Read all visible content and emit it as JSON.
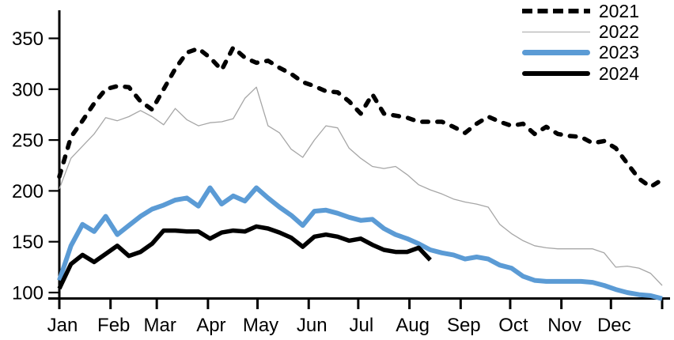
{
  "chart_data": {
    "type": "line",
    "x_axis": {
      "tick_labels": [
        "Jan",
        "Feb",
        "Mar",
        "Apr",
        "May",
        "Jun",
        "Jul",
        "Aug",
        "Sep",
        "Oct",
        "Nov",
        "Dec"
      ],
      "unit": "weekly points across one calendar year",
      "month_start_days": [
        0,
        31,
        59,
        90,
        120,
        151,
        181,
        212,
        243,
        273,
        304,
        334,
        365
      ]
    },
    "y_axis": {
      "min": 100,
      "max": 350,
      "tick_step": 50,
      "ticks": [
        100,
        150,
        200,
        250,
        300,
        350
      ]
    },
    "grid": false,
    "legend": {
      "position": "top-right",
      "entries": [
        "2021",
        "2022",
        "2023",
        "2024"
      ]
    },
    "series": [
      {
        "name": "2021",
        "style": "dashed",
        "color": "#000000",
        "width": 5.5,
        "values": [
          214,
          253,
          269,
          286,
          300,
          303,
          302,
          288,
          280,
          300,
          320,
          336,
          340,
          331,
          319,
          341,
          331,
          326,
          328,
          321,
          315,
          307,
          303,
          298,
          297,
          288,
          276,
          295,
          276,
          274,
          272,
          268,
          268,
          268,
          263,
          257,
          266,
          273,
          268,
          264,
          266,
          256,
          263,
          256,
          254,
          253,
          247,
          249,
          242,
          227,
          212,
          204,
          211
        ]
      },
      {
        "name": "2022",
        "style": "solid",
        "color": "#a6a6a6",
        "width": 1.3,
        "values": [
          202,
          232,
          244,
          256,
          272,
          269,
          273,
          279,
          273,
          265,
          281,
          270,
          264,
          267,
          268,
          271,
          291,
          302,
          264,
          257,
          241,
          233,
          250,
          264,
          262,
          242,
          232,
          224,
          222,
          224,
          216,
          206,
          201,
          197,
          192,
          189,
          187,
          184,
          167,
          158,
          151,
          146,
          144,
          143,
          143,
          143,
          143,
          139,
          125,
          126,
          124,
          119,
          107
        ]
      },
      {
        "name": "2023",
        "style": "solid",
        "color": "#5b9bd5",
        "width": 6,
        "values": [
          112,
          146,
          167,
          160,
          175,
          157,
          166,
          175,
          182,
          186,
          191,
          193,
          185,
          203,
          187,
          195,
          190,
          203,
          193,
          184,
          176,
          166,
          180,
          181,
          178,
          174,
          171,
          172,
          163,
          157,
          153,
          148,
          142,
          139,
          137,
          133,
          135,
          133,
          127,
          124,
          116,
          112,
          111,
          111,
          111,
          111,
          110,
          107,
          103,
          100,
          98,
          97,
          94
        ]
      },
      {
        "name": "2024",
        "style": "solid",
        "color": "#000000",
        "width": 5.5,
        "values": [
          104,
          128,
          137,
          130,
          138,
          146,
          136,
          140,
          148,
          161,
          161,
          160,
          160,
          153,
          159,
          161,
          160,
          165,
          163,
          159,
          154,
          145,
          155,
          157,
          155,
          151,
          153,
          147,
          142,
          140,
          140,
          144,
          132
        ]
      }
    ]
  }
}
